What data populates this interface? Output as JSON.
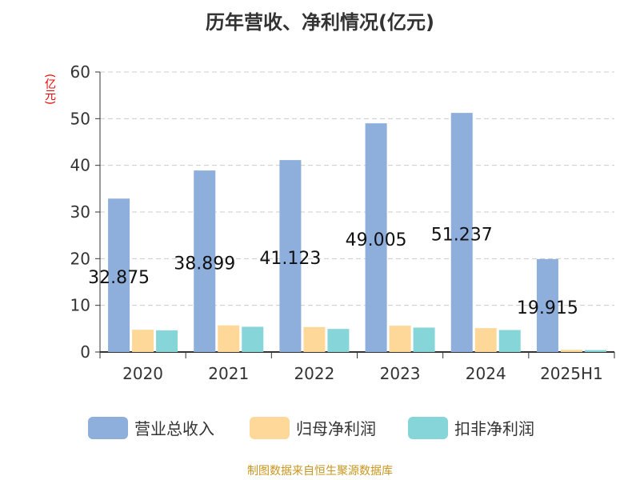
{
  "title": "历年营收、净利情况(亿元)",
  "footer": "制图数据来自恒生聚源数据库",
  "chart_data": {
    "type": "bar",
    "title": "历年营收、净利情况(亿元)",
    "ylabel": "(亿元)",
    "categories": [
      "2020",
      "2021",
      "2022",
      "2023",
      "2024",
      "2025H1"
    ],
    "ylim": [
      0,
      60
    ],
    "yticks": [
      0,
      10,
      20,
      30,
      40,
      50,
      60
    ],
    "grid": true,
    "legend_position": "bottom",
    "series": [
      {
        "name": "营业总收入",
        "color": "#8eaedb",
        "values": [
          32.875,
          38.899,
          41.123,
          49.005,
          51.237,
          19.915
        ],
        "labels": [
          "32.875",
          "38.899",
          "41.123",
          "49.005",
          "51.237",
          "19.915"
        ]
      },
      {
        "name": "归母净利润",
        "color": "#fed898",
        "values": [
          4.77,
          5.7,
          5.35,
          5.64,
          5.12,
          0.47
        ]
      },
      {
        "name": "扣非净利润",
        "color": "#86d5d9",
        "values": [
          4.65,
          5.41,
          4.94,
          5.23,
          4.71,
          0.41
        ]
      }
    ]
  }
}
